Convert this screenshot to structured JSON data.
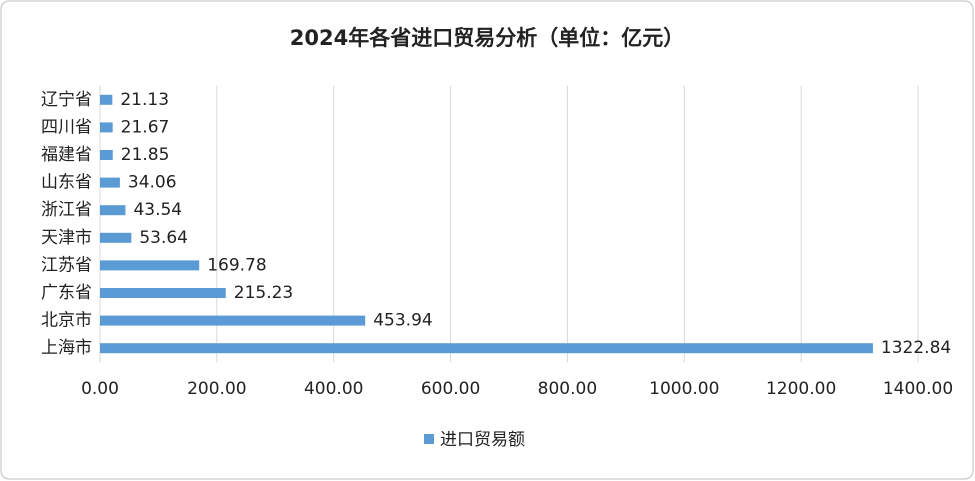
{
  "chart_data": {
    "type": "barh",
    "title": "2024年各省进口贸易分析（单位：亿元）",
    "categories": [
      "辽宁省",
      "四川省",
      "福建省",
      "山东省",
      "浙江省",
      "天津市",
      "江苏省",
      "广东省",
      "北京市",
      "上海市"
    ],
    "series": [
      {
        "name": "进口贸易额",
        "color": "#5b9bd5",
        "values": [
          21.13,
          21.67,
          21.85,
          34.06,
          43.54,
          53.64,
          169.78,
          215.23,
          453.94,
          1322.84
        ]
      }
    ],
    "xlim": [
      0,
      1400
    ],
    "xticks": [
      {
        "value": 0,
        "label": "0.00"
      },
      {
        "value": 200,
        "label": "200.00"
      },
      {
        "value": 400,
        "label": "400.00"
      },
      {
        "value": 600,
        "label": "600.00"
      },
      {
        "value": 800,
        "label": "800.00"
      },
      {
        "value": 1000,
        "label": "1000.00"
      },
      {
        "value": 1200,
        "label": "1200.00"
      },
      {
        "value": 1400,
        "label": "1400.00"
      }
    ],
    "grid": true,
    "legend": "bottom"
  }
}
